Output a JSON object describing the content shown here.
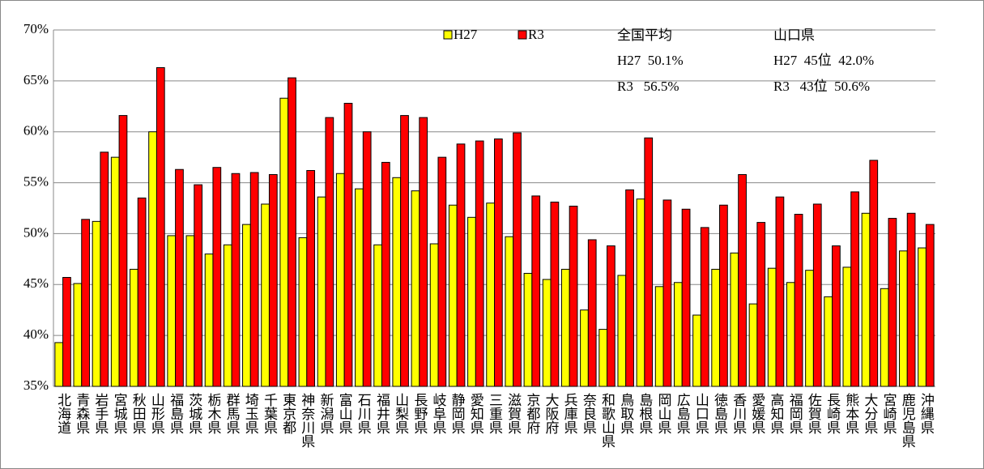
{
  "chart_data": {
    "type": "bar",
    "categories": [
      "北海道",
      "青森県",
      "岩手県",
      "宮城県",
      "秋田県",
      "山形県",
      "福島県",
      "茨城県",
      "栃木県",
      "群馬県",
      "埼玉県",
      "千葉県",
      "東京都",
      "神奈川県",
      "新潟県",
      "富山県",
      "石川県",
      "福井県",
      "山梨県",
      "長野県",
      "岐阜県",
      "静岡県",
      "愛知県",
      "三重県",
      "滋賀県",
      "京都府",
      "大阪府",
      "兵庫県",
      "奈良県",
      "和歌山県",
      "鳥取県",
      "島根県",
      "岡山県",
      "広島県",
      "山口県",
      "徳島県",
      "香川県",
      "愛媛県",
      "高知県",
      "福岡県",
      "佐賀県",
      "長崎県",
      "熊本県",
      "大分県",
      "宮崎県",
      "鹿児島県",
      "沖縄県"
    ],
    "series": [
      {
        "name": "H27",
        "color": "#ffff00",
        "values": [
          39.3,
          45.1,
          51.2,
          57.5,
          46.5,
          60.0,
          49.8,
          49.8,
          48.0,
          48.9,
          50.9,
          52.9,
          63.3,
          49.6,
          53.6,
          55.9,
          54.4,
          48.9,
          55.5,
          54.2,
          49.0,
          52.8,
          51.6,
          53.0,
          49.7,
          46.1,
          45.5,
          46.5,
          42.5,
          40.6,
          45.9,
          53.4,
          44.8,
          45.2,
          42.0,
          46.5,
          48.1,
          43.1,
          46.6,
          45.2,
          46.4,
          43.8,
          46.7,
          52.0,
          44.6,
          48.3,
          48.6
        ]
      },
      {
        "name": "R3",
        "color": "#ff0000",
        "values": [
          45.7,
          51.4,
          58.0,
          61.6,
          53.5,
          66.3,
          56.3,
          54.8,
          56.5,
          55.9,
          56.0,
          55.8,
          65.3,
          56.2,
          61.4,
          62.8,
          60.0,
          57.0,
          61.6,
          61.4,
          57.5,
          58.8,
          59.1,
          59.3,
          59.9,
          53.7,
          53.1,
          52.7,
          49.4,
          48.8,
          54.3,
          59.4,
          53.3,
          52.4,
          50.6,
          52.8,
          55.8,
          51.1,
          53.6,
          51.9,
          52.9,
          48.8,
          54.1,
          57.2,
          51.5,
          52.0,
          50.9
        ]
      }
    ],
    "ylim": [
      35,
      70
    ],
    "yticks": [
      {
        "value": 35,
        "label": "35%"
      },
      {
        "value": 40,
        "label": "40%"
      },
      {
        "value": 45,
        "label": "45%"
      },
      {
        "value": 50,
        "label": "50%"
      },
      {
        "value": 55,
        "label": "55%"
      },
      {
        "value": 60,
        "label": "60%"
      },
      {
        "value": 65,
        "label": "65%"
      },
      {
        "value": 70,
        "label": "70%"
      }
    ],
    "grid": true,
    "annotations": [
      "全国平均",
      "H27  50.1%",
      "R3   56.5%",
      "山口県",
      "H27  45位  42.0%",
      "R3   43位  50.6%"
    ]
  }
}
